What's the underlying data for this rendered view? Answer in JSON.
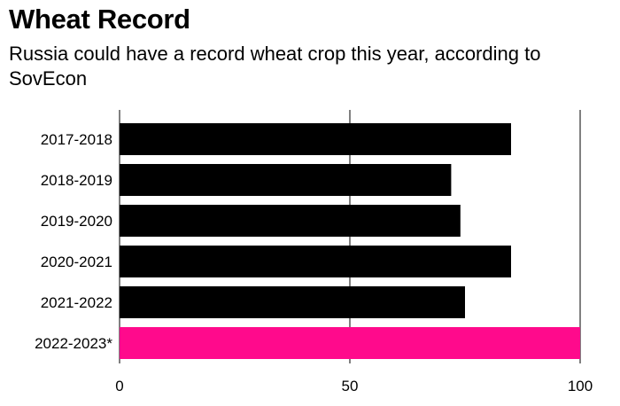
{
  "chart_data": {
    "type": "bar",
    "orientation": "horizontal",
    "title": "Wheat Record",
    "subtitle": "Russia could have a record wheat crop this year, according to SovEcon",
    "categories": [
      "2017-2018",
      "2018-2019",
      "2019-2020",
      "2020-2021",
      "2021-2022",
      "2022-2023*"
    ],
    "values": [
      85,
      72,
      74,
      85,
      75,
      100
    ],
    "colors": [
      "#000000",
      "#000000",
      "#000000",
      "#000000",
      "#000000",
      "#ff0a8c"
    ],
    "xlim": [
      0,
      100
    ],
    "xticks": [
      0,
      50,
      100
    ],
    "xlabel": "",
    "ylabel": "",
    "grid": false,
    "legend": "none"
  }
}
